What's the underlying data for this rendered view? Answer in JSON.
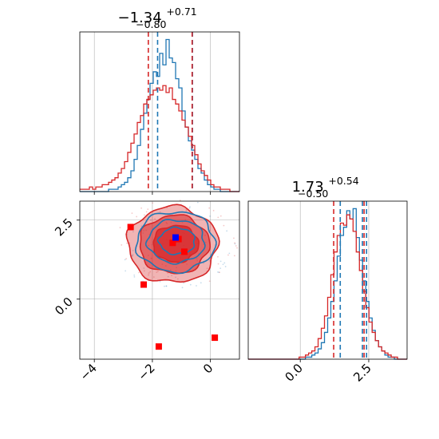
{
  "colors": {
    "blue": "#1f77b4",
    "red": "#d62728",
    "marker_red": "#ff0000",
    "marker_blue": "#0000ff",
    "grid": "#b0b0b0"
  },
  "chart_data": [
    {
      "panel": "top-left",
      "type": "histogram",
      "title": {
        "value": "−1.34",
        "sup": "+0.71",
        "sub": "−0.80"
      },
      "xlim": [
        -4.5,
        1.0
      ],
      "grid": true,
      "bins": [
        -4.5,
        1.0,
        50
      ],
      "series": [
        {
          "color": "blue",
          "counts": [
            0,
            0,
            0,
            0,
            0,
            0,
            0,
            0,
            0,
            1,
            1,
            1,
            2,
            3,
            4,
            6,
            9,
            14,
            20,
            27,
            34,
            40,
            47,
            52,
            50,
            60,
            55,
            66,
            58,
            56,
            49,
            45,
            35,
            28,
            22,
            18,
            14,
            10,
            8,
            5,
            3,
            2,
            1,
            1,
            0,
            0,
            0,
            0,
            0,
            0
          ]
        },
        {
          "color": "red",
          "counts": [
            1,
            1,
            1,
            2,
            1,
            2,
            2,
            3,
            3,
            4,
            5,
            6,
            8,
            10,
            13,
            17,
            21,
            25,
            30,
            33,
            38,
            40,
            42,
            44,
            45,
            44,
            46,
            43,
            45,
            40,
            38,
            35,
            31,
            28,
            24,
            20,
            16,
            12,
            9,
            7,
            5,
            3,
            2,
            2,
            1,
            1,
            1,
            0,
            0,
            0
          ]
        }
      ],
      "quantile_lines": [
        {
          "color": "red",
          "x": -2.14
        },
        {
          "color": "blue",
          "x": -1.82
        },
        {
          "color": "blue",
          "x": -0.62
        },
        {
          "color": "red",
          "x": -0.63
        }
      ],
      "xticks": []
    },
    {
      "panel": "bottom-left",
      "type": "scatter",
      "xlim": [
        -4.5,
        1.0
      ],
      "ylim": [
        -1.9,
        3.1
      ],
      "grid": true,
      "xticks": [
        "−4",
        "−2",
        "0"
      ],
      "xtick_values": [
        -4,
        -2,
        0
      ],
      "yticks": [
        "0.0",
        "2.5"
      ],
      "ytick_values": [
        0.0,
        2.5
      ],
      "contours": [
        {
          "color": "red",
          "cx": -1.3,
          "cy": 1.72,
          "rx": 1.55,
          "ry": 1.2,
          "fill": 0.35
        },
        {
          "color": "red",
          "cx": -1.25,
          "cy": 1.73,
          "rx": 1.2,
          "ry": 0.92,
          "fill": 0.55
        },
        {
          "color": "red",
          "cx": -1.2,
          "cy": 1.75,
          "rx": 0.78,
          "ry": 0.58,
          "fill": 0.75
        },
        {
          "color": "blue",
          "cx": -1.2,
          "cy": 1.82,
          "rx": 1.35,
          "ry": 0.95,
          "fill": 0
        },
        {
          "color": "blue",
          "cx": -1.18,
          "cy": 1.83,
          "rx": 0.98,
          "ry": 0.68,
          "fill": 0
        },
        {
          "color": "blue",
          "cx": -1.15,
          "cy": 1.84,
          "rx": 0.62,
          "ry": 0.42,
          "fill": 0
        }
      ],
      "red_markers": [
        {
          "x": -2.3,
          "y": 0.46
        },
        {
          "x": -1.78,
          "y": -1.5
        },
        {
          "x": 0.15,
          "y": -1.22
        },
        {
          "x": 0.2,
          "y": -2.2
        },
        {
          "x": -1.3,
          "y": 1.78
        },
        {
          "x": -0.9,
          "y": 1.5
        },
        {
          "x": -1.1,
          "y": 1.9
        },
        {
          "x": -2.75,
          "y": 2.28
        }
      ],
      "blue_markers": [
        {
          "x": -1.2,
          "y": 1.95
        }
      ]
    },
    {
      "panel": "bottom-right",
      "type": "histogram",
      "title": {
        "value": "1.73",
        "sup": "+0.54",
        "sub": "−0.50"
      },
      "xlim": [
        -1.9,
        3.9
      ],
      "grid": true,
      "xticks": [
        "0.0",
        "2.5"
      ],
      "xtick_values": [
        0.0,
        2.5
      ],
      "bins": [
        -1.9,
        3.9,
        50
      ],
      "series": [
        {
          "color": "blue",
          "counts": [
            0,
            0,
            0,
            0,
            0,
            0,
            0,
            0,
            0,
            0,
            0,
            0,
            0,
            0,
            0,
            0,
            0,
            0,
            1,
            1,
            2,
            3,
            5,
            8,
            13,
            20,
            28,
            38,
            50,
            60,
            64,
            72,
            68,
            73,
            59,
            48,
            38,
            28,
            20,
            14,
            9,
            6,
            4,
            2,
            1,
            1,
            0,
            0,
            0,
            0
          ]
        },
        {
          "color": "red",
          "counts": [
            0,
            0,
            0,
            0,
            0,
            0,
            0,
            0,
            0,
            0,
            0,
            0,
            0,
            0,
            0,
            0,
            1,
            1,
            2,
            3,
            4,
            6,
            10,
            15,
            21,
            30,
            41,
            52,
            60,
            66,
            65,
            70,
            68,
            62,
            52,
            43,
            33,
            25,
            18,
            13,
            9,
            6,
            4,
            3,
            2,
            1,
            1,
            0,
            0,
            0
          ]
        }
      ],
      "quantile_lines": [
        {
          "color": "red",
          "x": 1.22
        },
        {
          "color": "blue",
          "x": 1.46
        },
        {
          "color": "red",
          "x": 2.33
        },
        {
          "color": "blue",
          "x": 2.42
        },
        {
          "color": "blue",
          "x": 2.27
        }
      ]
    }
  ]
}
